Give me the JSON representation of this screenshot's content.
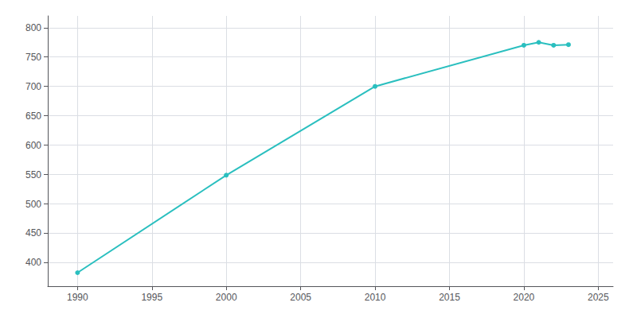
{
  "chart_data": {
    "type": "line",
    "x": [
      1990,
      2000,
      2010,
      2020,
      2021,
      2022,
      2023
    ],
    "values": [
      383,
      549,
      700,
      770,
      775,
      770,
      771
    ],
    "color": "#2abfbf",
    "marker": "circle",
    "xlim": [
      1988,
      2026
    ],
    "xticks": [
      1990,
      1995,
      2000,
      2005,
      2010,
      2015,
      2020,
      2025
    ],
    "ylim": [
      360,
      820
    ],
    "yticks": [
      400,
      450,
      500,
      550,
      600,
      650,
      700,
      750,
      800
    ],
    "grid": true
  }
}
